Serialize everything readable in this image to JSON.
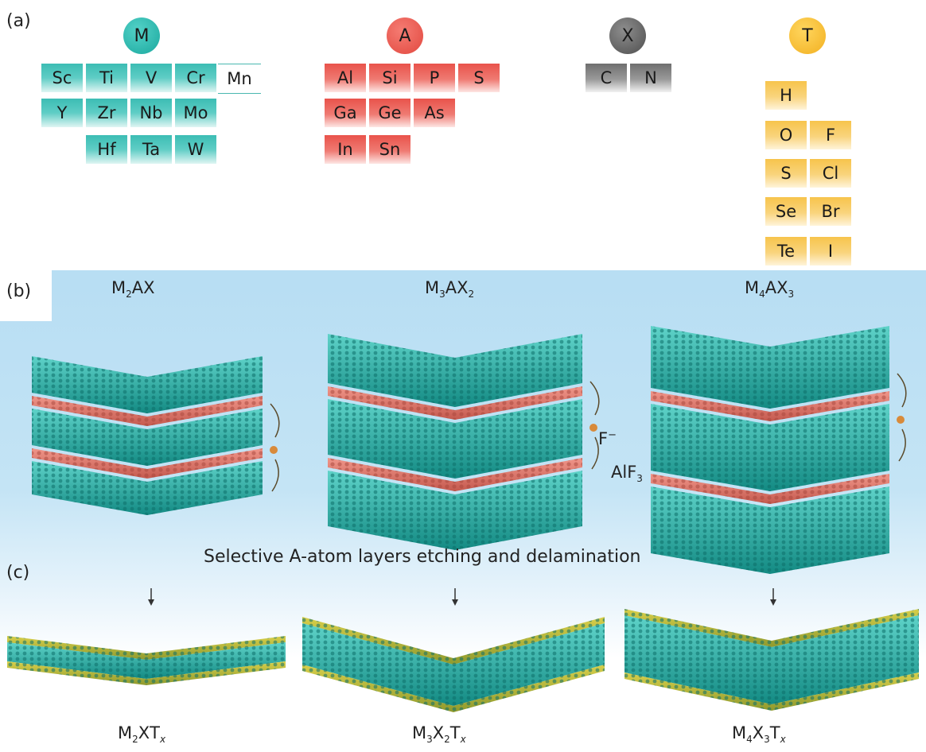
{
  "panels": {
    "a": "(a)",
    "b": "(b)",
    "c": "(c)"
  },
  "periodic": {
    "M": {
      "symbol": "M",
      "rows": [
        [
          "Sc",
          "Ti",
          "V",
          "Cr",
          "Mn"
        ],
        [
          "Y",
          "Zr",
          "Nb",
          "Mo"
        ],
        [
          "Hf",
          "Ta",
          "W"
        ]
      ]
    },
    "A": {
      "symbol": "A",
      "rows": [
        [
          "Al",
          "Si",
          "P",
          "S"
        ],
        [
          "Ga",
          "Ge",
          "As"
        ],
        [
          "In",
          "Sn"
        ]
      ]
    },
    "X": {
      "symbol": "X",
      "elements": [
        "C",
        "N"
      ]
    },
    "T": {
      "symbol": "T",
      "first": "H",
      "pairs": [
        [
          "O",
          "F"
        ],
        [
          "S",
          "Cl"
        ],
        [
          "Se",
          "Br"
        ],
        [
          "Te",
          "I"
        ]
      ]
    }
  },
  "max_phases": [
    {
      "base": "M",
      "n1": "2",
      "mid": "AX",
      "n2": "",
      "label": "M2AX"
    },
    {
      "base": "M",
      "n1": "3",
      "mid": "AX",
      "n2": "2",
      "label": "M3AX2"
    },
    {
      "base": "M",
      "n1": "4",
      "mid": "AX",
      "n2": "3",
      "label": "M4AX3"
    }
  ],
  "etchants": {
    "fluoride": "F",
    "fluoride_sup": "−",
    "product": "AlF",
    "product_sub": "3"
  },
  "caption": "Selective A-atom layers etching and delamination",
  "mxenes": [
    {
      "m": "M",
      "mn": "2",
      "x": "X",
      "xn": "",
      "t": "T",
      "tn": "x"
    },
    {
      "m": "M",
      "mn": "3",
      "x": "X",
      "xn": "2",
      "t": "T",
      "tn": "x"
    },
    {
      "m": "M",
      "mn": "4",
      "x": "X",
      "xn": "3",
      "t": "T",
      "tn": "x"
    }
  ],
  "colors": {
    "M": "#2fb6ac",
    "A": "#e9534b",
    "X": "#7a7a7a",
    "T": "#f5bf3f",
    "background": "#b8def3",
    "interlayer": "#e07a6c",
    "surface": "#c9c23a"
  }
}
